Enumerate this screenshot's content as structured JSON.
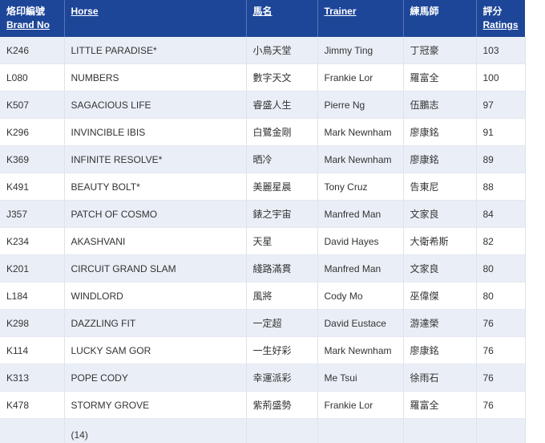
{
  "colors": {
    "header_bg": "#1d4699",
    "header_text": "#ffffff",
    "row_alt_bg": "#eaeff7",
    "row_bg": "#ffffff",
    "border": "#dde2ec",
    "body_text": "#333333"
  },
  "table": {
    "headers": {
      "brand_no": {
        "cn": "烙印編號",
        "en": "Brand No"
      },
      "horse": {
        "en": "Horse"
      },
      "horse_name_cn": {
        "cn": "馬名"
      },
      "trainer": {
        "en": "Trainer"
      },
      "trainer_cn": {
        "cn": "練馬師"
      },
      "ratings": {
        "cn": "評分",
        "en": "Ratings"
      }
    },
    "rows": [
      {
        "brand_no": "K246",
        "horse": "LITTLE PARADISE*",
        "horse_cn": "小鳥天堂",
        "trainer": "Jimmy Ting",
        "trainer_cn": "丁冠豪",
        "rating": "103"
      },
      {
        "brand_no": "L080",
        "horse": "NUMBERS",
        "horse_cn": "數字天文",
        "trainer": "Frankie Lor",
        "trainer_cn": "羅富全",
        "rating": "100"
      },
      {
        "brand_no": "K507",
        "horse": "SAGACIOUS LIFE",
        "horse_cn": "睿盛人生",
        "trainer": "Pierre Ng",
        "trainer_cn": "伍鵬志",
        "rating": "97"
      },
      {
        "brand_no": "K296",
        "horse": "INVINCIBLE IBIS",
        "horse_cn": "白鷺金剛",
        "trainer": "Mark Newnham",
        "trainer_cn": "廖康銘",
        "rating": "91"
      },
      {
        "brand_no": "K369",
        "horse": "INFINITE RESOLVE*",
        "horse_cn": "晒冷",
        "trainer": "Mark Newnham",
        "trainer_cn": "廖康銘",
        "rating": "89"
      },
      {
        "brand_no": "K491",
        "horse": "BEAUTY BOLT*",
        "horse_cn": "美麗星晨",
        "trainer": "Tony Cruz",
        "trainer_cn": "告東尼",
        "rating": "88"
      },
      {
        "brand_no": "J357",
        "horse": "PATCH OF COSMO",
        "horse_cn": "錶之宇宙",
        "trainer": "Manfred Man",
        "trainer_cn": "文家良",
        "rating": "84"
      },
      {
        "brand_no": "K234",
        "horse": "AKASHVANI",
        "horse_cn": "天星",
        "trainer": "David Hayes",
        "trainer_cn": "大衛希斯",
        "rating": "82"
      },
      {
        "brand_no": "K201",
        "horse": "CIRCUIT GRAND SLAM",
        "horse_cn": "綫路滿貫",
        "trainer": "Manfred Man",
        "trainer_cn": "文家良",
        "rating": "80"
      },
      {
        "brand_no": "L184",
        "horse": "WINDLORD",
        "horse_cn": "風將",
        "trainer": "Cody Mo",
        "trainer_cn": "巫偉傑",
        "rating": "80"
      },
      {
        "brand_no": "K298",
        "horse": "DAZZLING FIT",
        "horse_cn": "一定超",
        "trainer": "David Eustace",
        "trainer_cn": "游達榮",
        "rating": "76"
      },
      {
        "brand_no": "K114",
        "horse": "LUCKY SAM GOR",
        "horse_cn": "一生好彩",
        "trainer": "Mark Newnham",
        "trainer_cn": "廖康銘",
        "rating": "76"
      },
      {
        "brand_no": "K313",
        "horse": "POPE CODY",
        "horse_cn": "幸運派彩",
        "trainer": "Me Tsui",
        "trainer_cn": "徐雨石",
        "rating": "76"
      },
      {
        "brand_no": "K478",
        "horse": "STORMY GROVE",
        "horse_cn": "紫荊盛勢",
        "trainer": "Frankie Lor",
        "trainer_cn": "羅富全",
        "rating": "76"
      }
    ],
    "footer": {
      "count_label": "(14)"
    }
  }
}
